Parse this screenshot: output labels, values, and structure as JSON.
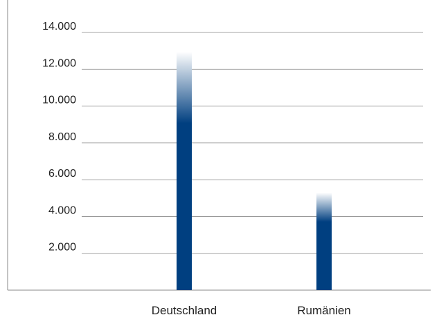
{
  "chart_data": {
    "type": "bar",
    "categories": [
      "Deutschland",
      "Rumänien"
    ],
    "values": [
      12950,
      5300
    ],
    "yticks": [
      {
        "value": 2000,
        "label": "2.000"
      },
      {
        "value": 4000,
        "label": "4.000"
      },
      {
        "value": 6000,
        "label": "6.000"
      },
      {
        "value": 8000,
        "label": "8.000"
      },
      {
        "value": 10000,
        "label": "10.000"
      },
      {
        "value": 12000,
        "label": "12.000"
      },
      {
        "value": 14000,
        "label": "14.000"
      }
    ],
    "ylim": [
      0,
      14000
    ],
    "grid": true,
    "legend": "none",
    "bar_color": "#003f80",
    "bar_top_color": "#ffffff",
    "grid_color": "#888888",
    "axis_color": "#888888",
    "text_color": "#222222"
  }
}
